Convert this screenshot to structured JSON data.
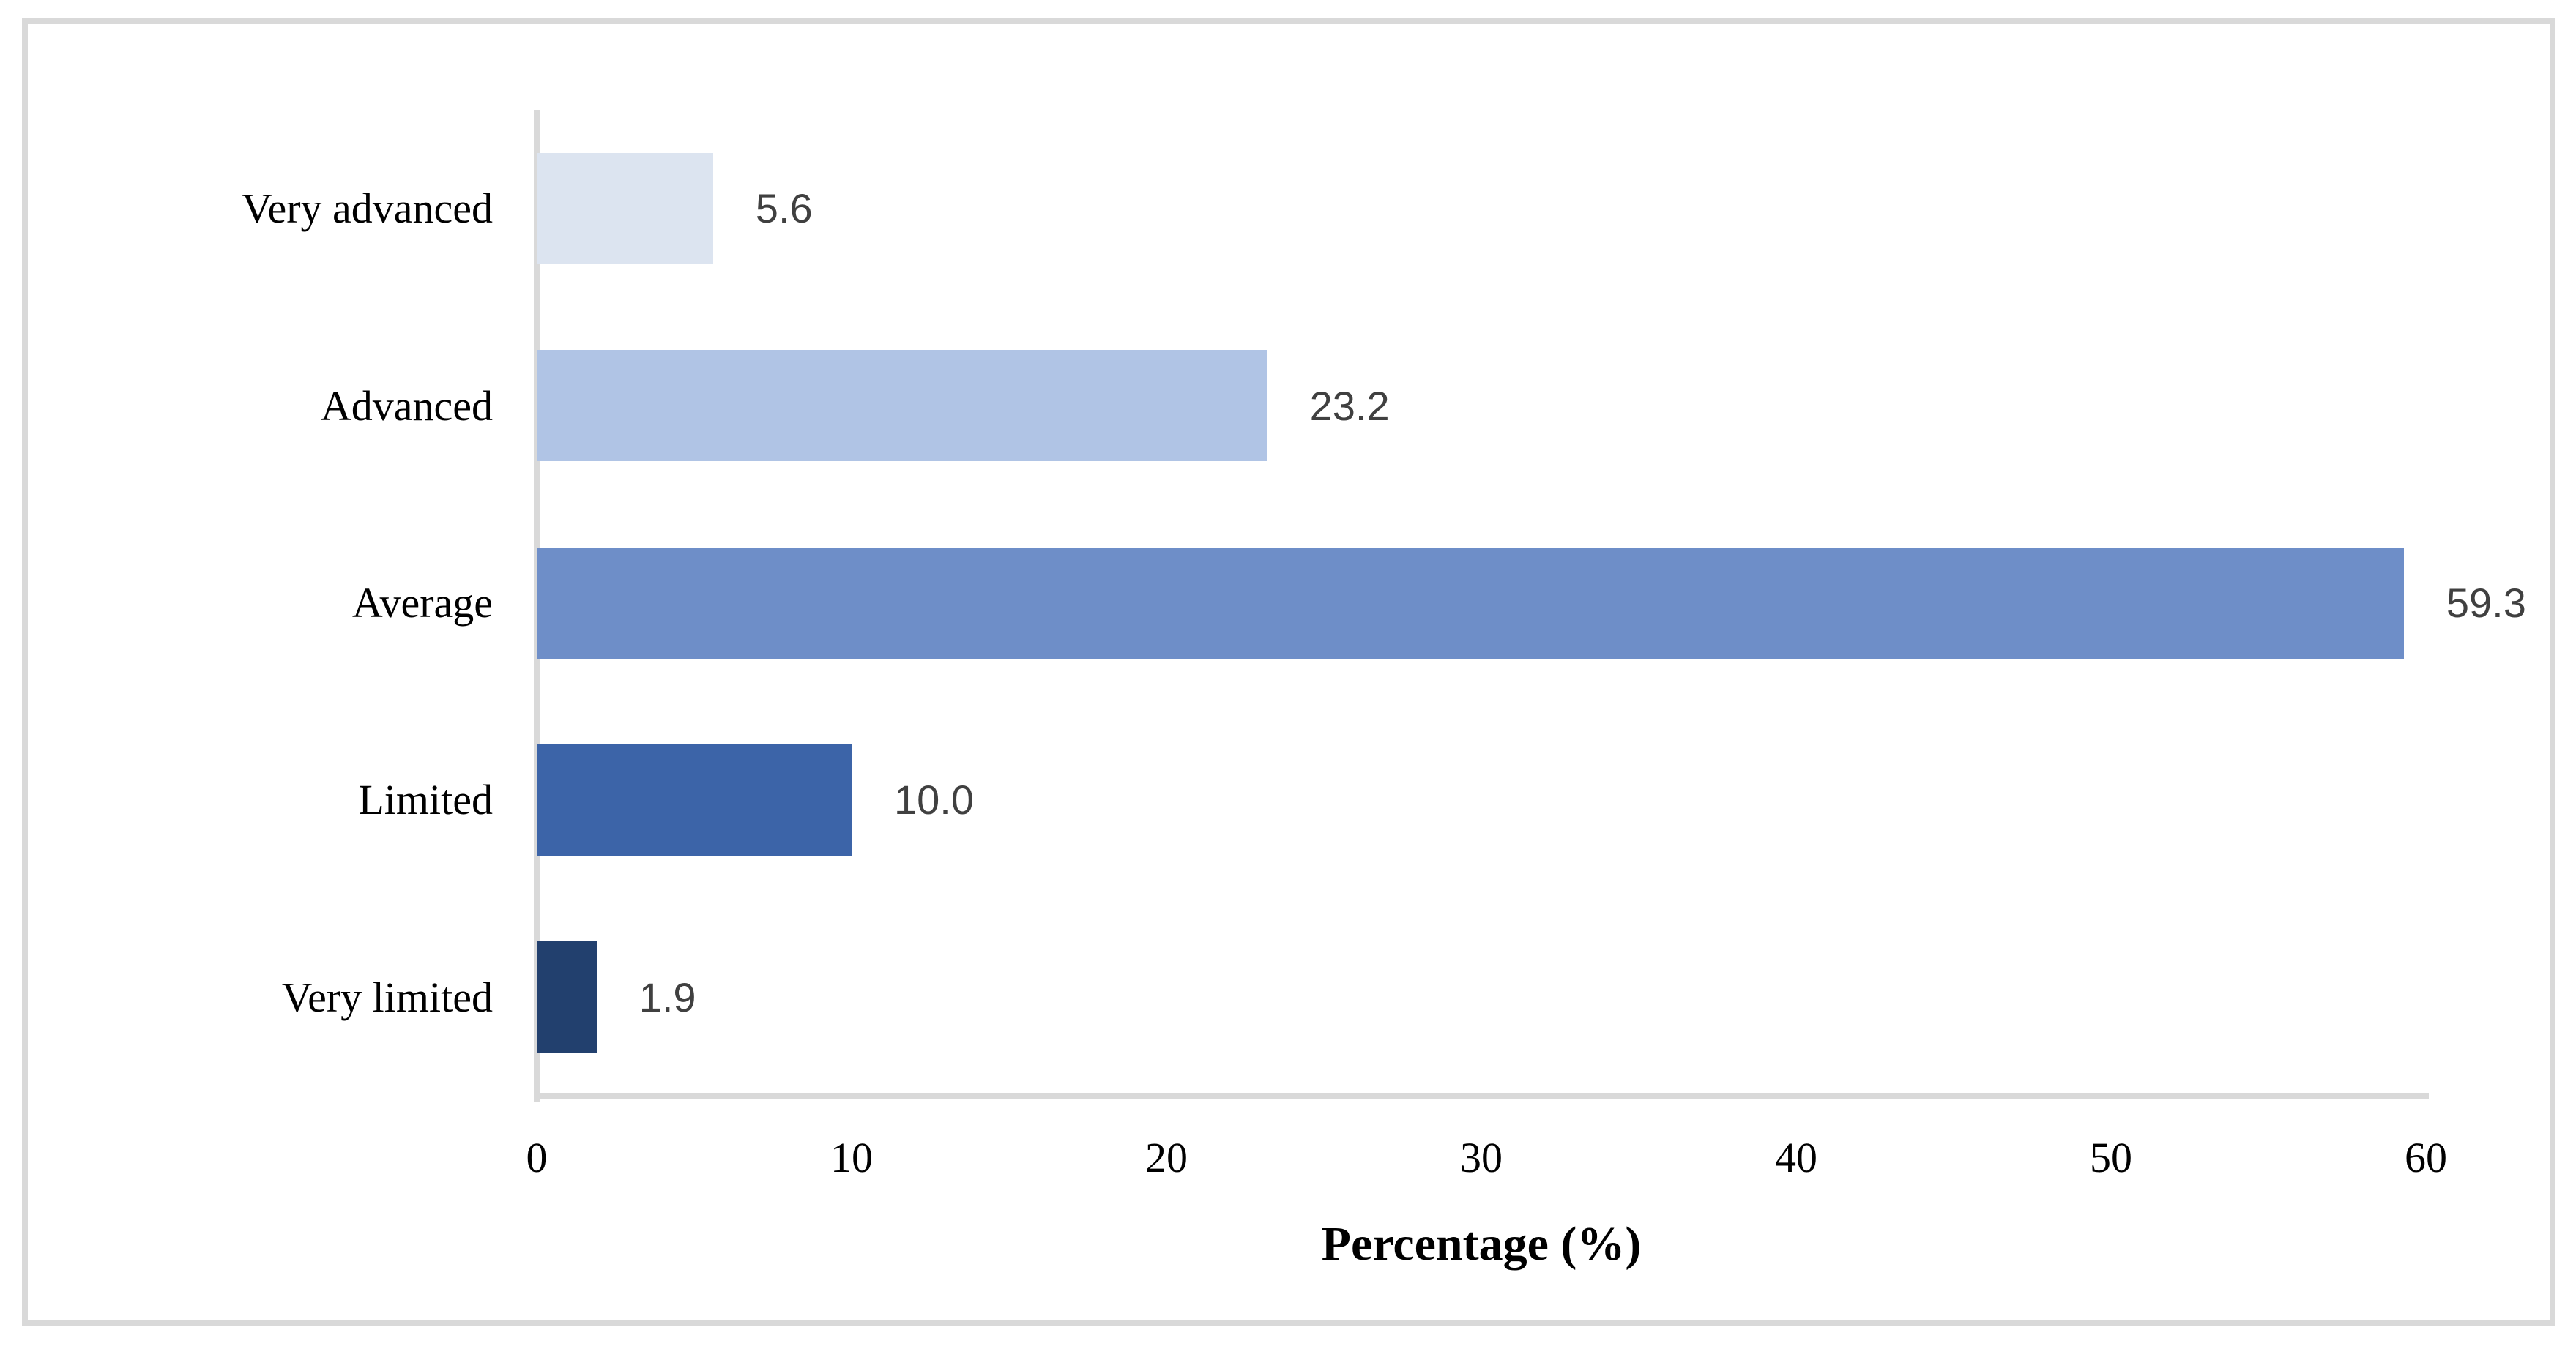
{
  "chart_data": {
    "type": "bar",
    "orientation": "horizontal",
    "title": "",
    "xlabel": "Percentage (%)",
    "ylabel": "",
    "categories": [
      "Very advanced",
      "Advanced",
      "Average",
      "Limited",
      "Very limited"
    ],
    "values": [
      5.6,
      23.2,
      59.3,
      10.0,
      1.9
    ],
    "value_labels": [
      "5.6",
      "23.2",
      "59.3",
      "10.0",
      "1.9"
    ],
    "xlim": [
      0,
      60
    ],
    "xticks": [
      "0",
      "10",
      "20",
      "30",
      "40",
      "50",
      "60"
    ],
    "grid": false,
    "legend": false,
    "bar_colors": [
      "#dce4f0",
      "#b0c4e5",
      "#6e8ec8",
      "#3c64a8",
      "#22406e"
    ],
    "axis_line_color": "#d9d9d9",
    "frame_border_color": "#d9d9d9",
    "value_label_color": "#404040",
    "text_color": "#000000"
  }
}
